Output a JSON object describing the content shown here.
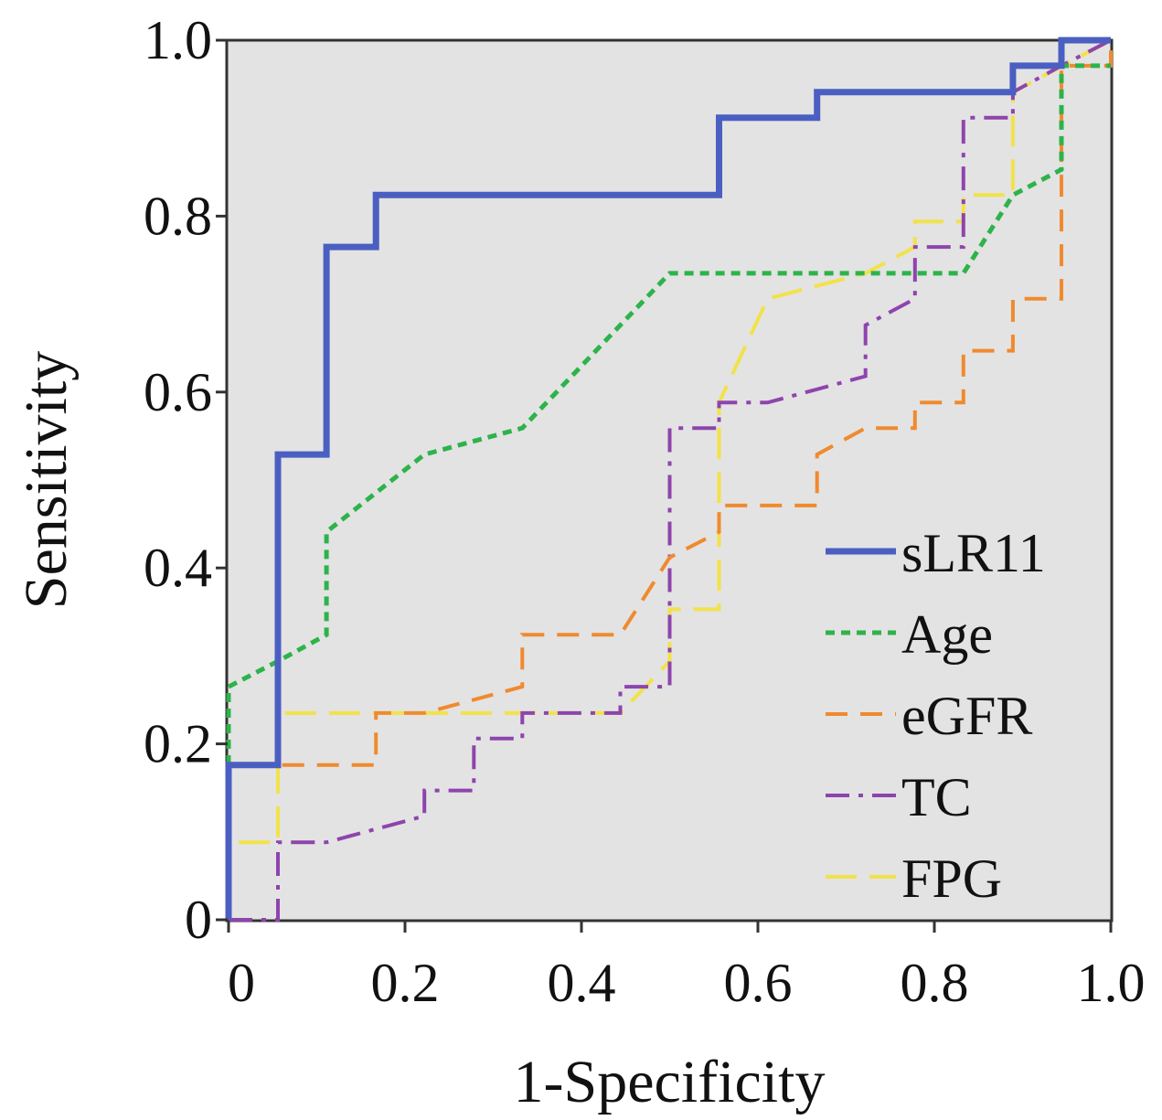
{
  "chart_data": {
    "type": "line",
    "title": "",
    "xlabel": "1-Specificity",
    "ylabel": "Sensitivity",
    "xlim": [
      0,
      1
    ],
    "ylim": [
      0,
      1
    ],
    "x_ticks": [
      "0",
      "0.2",
      "0.4",
      "0.6",
      "0.8",
      "1.0"
    ],
    "y_ticks": [
      "0",
      "0.2",
      "0.4",
      "0.6",
      "0.8",
      "1.0"
    ],
    "grid": false,
    "plot_background": "#e3e3e3",
    "legend_position": "bottom-right",
    "series": [
      {
        "name": "sLR11",
        "color": "#4a5fc1",
        "style": "solid",
        "points": [
          [
            0,
            0
          ],
          [
            0,
            0.176
          ],
          [
            0.056,
            0.176
          ],
          [
            0.056,
            0.529
          ],
          [
            0.111,
            0.529
          ],
          [
            0.111,
            0.765
          ],
          [
            0.167,
            0.765
          ],
          [
            0.167,
            0.824
          ],
          [
            0.556,
            0.824
          ],
          [
            0.556,
            0.912
          ],
          [
            0.667,
            0.912
          ],
          [
            0.667,
            0.941
          ],
          [
            0.889,
            0.941
          ],
          [
            0.889,
            0.971
          ],
          [
            0.944,
            0.971
          ],
          [
            0.944,
            1.0
          ],
          [
            1.0,
            1.0
          ]
        ]
      },
      {
        "name": "Age",
        "color": "#2db34a",
        "style": "dotted",
        "points": [
          [
            0,
            0
          ],
          [
            0,
            0.265
          ],
          [
            0.056,
            0.294
          ],
          [
            0.111,
            0.324
          ],
          [
            0.111,
            0.441
          ],
          [
            0.222,
            0.529
          ],
          [
            0.333,
            0.559
          ],
          [
            0.5,
            0.735
          ],
          [
            0.833,
            0.735
          ],
          [
            0.889,
            0.824
          ],
          [
            0.944,
            0.853
          ],
          [
            0.944,
            0.971
          ],
          [
            1.0,
            0.971
          ]
        ]
      },
      {
        "name": "eGFR",
        "color": "#f08a2e",
        "style": "dashed",
        "points": [
          [
            0,
            0
          ],
          [
            0,
            0.176
          ],
          [
            0.167,
            0.176
          ],
          [
            0.167,
            0.235
          ],
          [
            0.222,
            0.235
          ],
          [
            0.333,
            0.265
          ],
          [
            0.333,
            0.324
          ],
          [
            0.444,
            0.324
          ],
          [
            0.5,
            0.412
          ],
          [
            0.556,
            0.441
          ],
          [
            0.556,
            0.471
          ],
          [
            0.667,
            0.471
          ],
          [
            0.667,
            0.529
          ],
          [
            0.722,
            0.559
          ],
          [
            0.778,
            0.559
          ],
          [
            0.778,
            0.588
          ],
          [
            0.833,
            0.588
          ],
          [
            0.833,
            0.647
          ],
          [
            0.889,
            0.647
          ],
          [
            0.889,
            0.706
          ],
          [
            0.944,
            0.706
          ],
          [
            0.944,
            0.971
          ],
          [
            1.0,
            0.971
          ],
          [
            1.0,
            1.0
          ]
        ]
      },
      {
        "name": "TC",
        "color": "#8e44ad",
        "style": "dashdot",
        "points": [
          [
            0,
            0
          ],
          [
            0.056,
            0
          ],
          [
            0.056,
            0.088
          ],
          [
            0.111,
            0.088
          ],
          [
            0.222,
            0.118
          ],
          [
            0.222,
            0.147
          ],
          [
            0.278,
            0.147
          ],
          [
            0.278,
            0.206
          ],
          [
            0.333,
            0.206
          ],
          [
            0.333,
            0.235
          ],
          [
            0.444,
            0.235
          ],
          [
            0.444,
            0.265
          ],
          [
            0.5,
            0.265
          ],
          [
            0.5,
            0.559
          ],
          [
            0.556,
            0.559
          ],
          [
            0.556,
            0.588
          ],
          [
            0.611,
            0.588
          ],
          [
            0.722,
            0.618
          ],
          [
            0.722,
            0.676
          ],
          [
            0.778,
            0.706
          ],
          [
            0.778,
            0.765
          ],
          [
            0.833,
            0.765
          ],
          [
            0.833,
            0.912
          ],
          [
            0.889,
            0.912
          ],
          [
            0.889,
            0.941
          ],
          [
            0.944,
            0.971
          ],
          [
            1.0,
            1.0
          ]
        ]
      },
      {
        "name": "FPG",
        "color": "#f2e24a",
        "style": "longdash",
        "points": [
          [
            0,
            0
          ],
          [
            0,
            0.088
          ],
          [
            0.056,
            0.088
          ],
          [
            0.056,
            0.235
          ],
          [
            0.444,
            0.235
          ],
          [
            0.5,
            0.294
          ],
          [
            0.5,
            0.353
          ],
          [
            0.556,
            0.353
          ],
          [
            0.556,
            0.588
          ],
          [
            0.611,
            0.706
          ],
          [
            0.722,
            0.735
          ],
          [
            0.778,
            0.765
          ],
          [
            0.778,
            0.794
          ],
          [
            0.833,
            0.794
          ],
          [
            0.833,
            0.824
          ],
          [
            0.889,
            0.824
          ],
          [
            0.889,
            0.941
          ],
          [
            1.0,
            1.0
          ]
        ]
      }
    ]
  }
}
